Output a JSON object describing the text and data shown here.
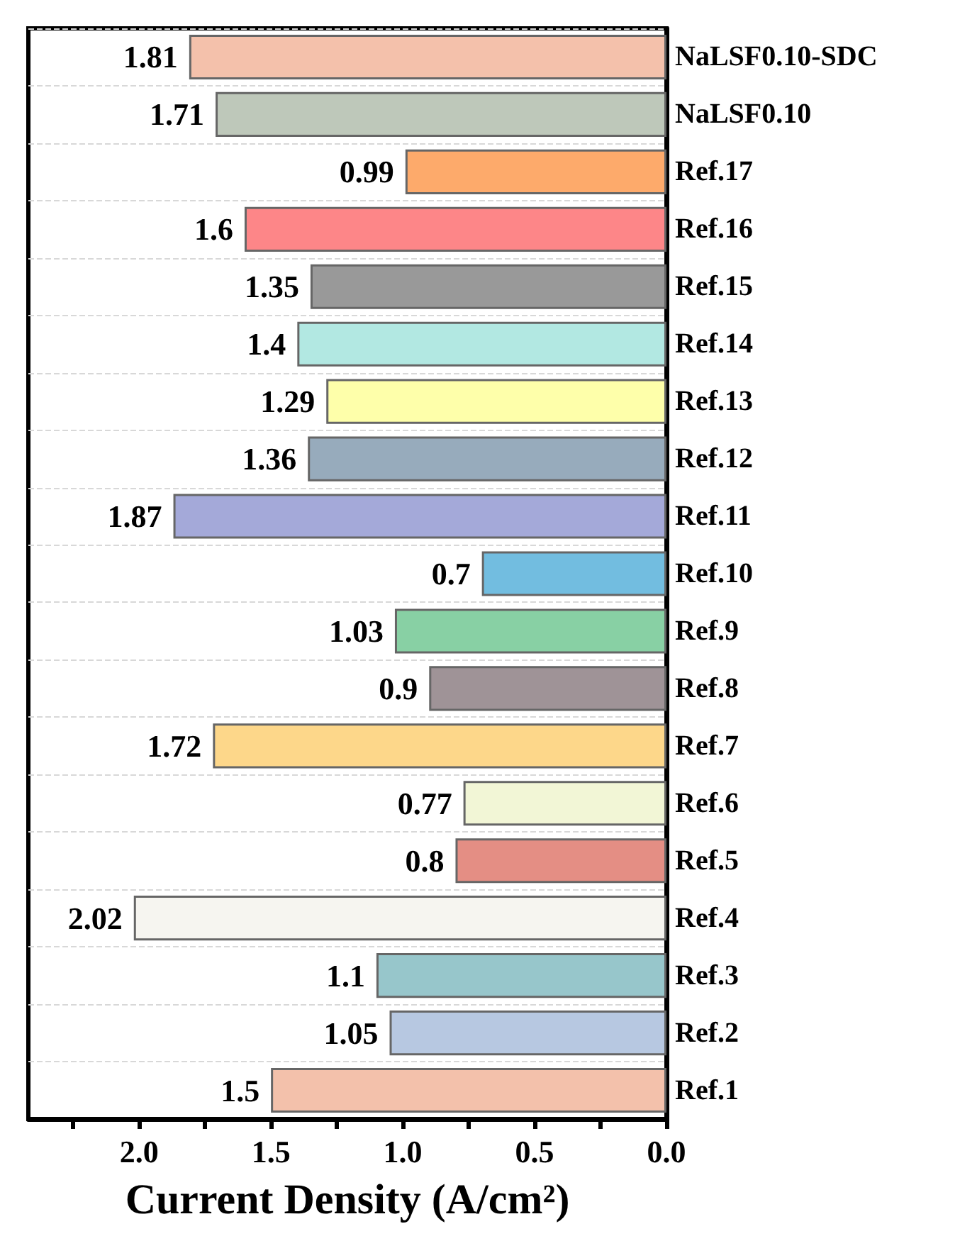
{
  "chart_data": {
    "type": "bar",
    "orientation": "horizontal",
    "xlabel": "Current Density (A/cm²)",
    "categories": [
      "NaLSF0.10-SDC",
      "NaLSF0.10",
      "Ref.17",
      "Ref.16",
      "Ref.15",
      "Ref.14",
      "Ref.13",
      "Ref.12",
      "Ref.11",
      "Ref.10",
      "Ref.9",
      "Ref.8",
      "Ref.7",
      "Ref.6",
      "Ref.5",
      "Ref.4",
      "Ref.3",
      "Ref.2",
      "Ref.1"
    ],
    "values": [
      1.81,
      1.71,
      0.99,
      1.6,
      1.35,
      1.4,
      1.29,
      1.36,
      1.87,
      0.7,
      1.03,
      0.9,
      1.72,
      0.77,
      0.8,
      2.02,
      1.1,
      1.05,
      1.5
    ],
    "colors": [
      "#f4c1ab",
      "#bec8ba",
      "#fdaa6b",
      "#fd8688",
      "#999999",
      "#b2e8e2",
      "#feffaa",
      "#97abbc",
      "#a4a9d9",
      "#72bde0",
      "#88d0a4",
      "#9f9397",
      "#fdd78a",
      "#f2f6d6",
      "#e48e84",
      "#f6f5f0",
      "#97c6cb",
      "#b7c8e1",
      "#f3c1ab"
    ],
    "xlim": [
      2.42,
      0
    ],
    "xticks": [
      {
        "value": 2.25,
        "label": null
      },
      {
        "value": 2,
        "label": "2.0"
      },
      {
        "value": 1.75,
        "label": null
      },
      1.5,
      {
        "value": 1.25,
        "label": null
      },
      {
        "value": 1,
        "label": "1.0"
      },
      {
        "value": 0.75,
        "label": null
      },
      0.5,
      {
        "value": 0.25,
        "label": null
      },
      {
        "value": 0,
        "label": "0.0"
      }
    ],
    "grid": "y",
    "data_labels": true
  }
}
